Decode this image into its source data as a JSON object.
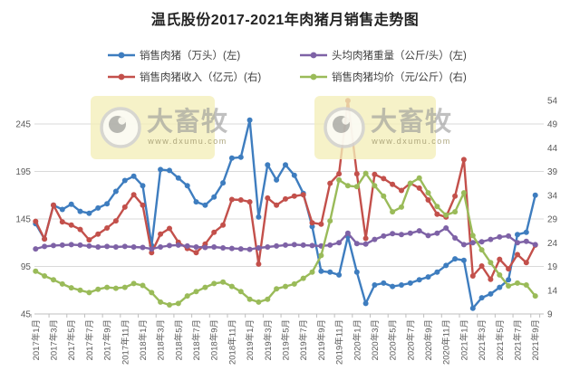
{
  "title": "温氏股份2017-2021年肉猪月销售走势图",
  "legend": {
    "items": [
      {
        "label": "销售肉猪（万头）(左)",
        "color": "#3E7DBF"
      },
      {
        "label": "销售肉猪收入（亿元）(右)",
        "color": "#C3504B"
      },
      {
        "label": "头均肉猪重量（公斤/头）(左)",
        "color": "#7E62A6"
      },
      {
        "label": "销售肉猪均价（元/公斤）(右)",
        "color": "#9ABB59"
      }
    ]
  },
  "watermark": {
    "brand": "大畜牧",
    "url": "www.dxumu.com"
  },
  "axes": {
    "left_ticks": [
      45,
      95,
      145,
      195,
      245
    ],
    "right_ticks": [
      9,
      14,
      19,
      24,
      29,
      34,
      39,
      44,
      49,
      54
    ]
  },
  "chart_data": {
    "type": "line",
    "title": "温氏股份2017-2021年肉猪月销售走势图",
    "grid": true,
    "legend_position": "top",
    "left_axis_range": [
      45,
      245
    ],
    "right_axis_range": [
      9,
      54
    ],
    "categories": [
      "2017年1月",
      "2017年2月",
      "2017年3月",
      "2017年4月",
      "2017年5月",
      "2017年6月",
      "2017年7月",
      "2017年8月",
      "2017年9月",
      "2017年10月",
      "2017年11月",
      "2017年12月",
      "2018年1月",
      "2018年2月",
      "2018年3月",
      "2018年4月",
      "2018年5月",
      "2018年6月",
      "2018年7月",
      "2018年8月",
      "2018年9月",
      "2018年10月",
      "2018年11月",
      "2018年12月",
      "2019年1月",
      "2019年2月",
      "2019年3月",
      "2019年4月",
      "2019年5月",
      "2019年6月",
      "2019年7月",
      "2019年8月",
      "2019年9月",
      "2019年10月",
      "2019年11月",
      "2019年12月",
      "2020年1月",
      "2020年2月",
      "2020年3月",
      "2020年4月",
      "2020年5月",
      "2020年6月",
      "2020年7月",
      "2020年8月",
      "2020年9月",
      "2020年10月",
      "2020年11月",
      "2020年12月",
      "2021年1月",
      "2021年2月",
      "2021年3月",
      "2021年4月",
      "2021年5月",
      "2021年6月",
      "2021年7月",
      "2021年8月",
      "2021年9月"
    ],
    "x_label_every": 2,
    "series": [
      {
        "name": "销售肉猪（万头）(左)",
        "axis": "left",
        "color": "#3E7DBF",
        "values": [
          140,
          124,
          159.5,
          155,
          160.5,
          153,
          151,
          156.5,
          161,
          174,
          185.5,
          190,
          180,
          117,
          197,
          196,
          188,
          180,
          163,
          159.5,
          168,
          183,
          209,
          210,
          249,
          147,
          202,
          186,
          202,
          191,
          172,
          137,
          90,
          89,
          86,
          126.5,
          89,
          56,
          75.5,
          77.5,
          74,
          75.5,
          77.5,
          81,
          84,
          89,
          96,
          103,
          101.5,
          51,
          62,
          66,
          73,
          81,
          128.5,
          131,
          170
        ]
      },
      {
        "name": "销售肉猪收入（亿元）(右)",
        "axis": "right",
        "color": "#C3504B",
        "values": [
          28.5,
          24.8,
          31.9,
          28.4,
          27.7,
          26.8,
          24.6,
          25.8,
          27.1,
          28.6,
          31.5,
          34.1,
          31.9,
          21.9,
          25.8,
          27,
          24.1,
          22.8,
          21.9,
          23.7,
          26.2,
          27.7,
          33.1,
          33,
          32.6,
          19.5,
          33.4,
          31.9,
          33.2,
          33.8,
          34.1,
          28.2,
          27.9,
          36.5,
          38.5,
          53.9,
          38.5,
          24.9,
          38.4,
          37.5,
          36.3,
          35,
          36.5,
          35.5,
          33,
          30,
          29.4,
          33.8,
          41.5,
          17,
          19.1,
          16.3,
          20.5,
          18.5,
          21.5,
          19.8,
          23.5
        ]
      },
      {
        "name": "头均肉猪重量（公斤/头）(左)",
        "axis": "left",
        "color": "#7E62A6",
        "values": [
          113.5,
          116,
          117,
          117.5,
          118,
          117.5,
          116.5,
          115.5,
          116,
          115.5,
          116,
          115.5,
          115,
          113.5,
          115.5,
          117,
          117.5,
          116.5,
          115.5,
          115,
          115.5,
          114.5,
          114,
          113.5,
          113,
          114.5,
          115.5,
          116.5,
          117.5,
          118,
          117.5,
          117,
          116.5,
          117.5,
          120,
          130,
          119,
          118.5,
          123.5,
          127,
          129.5,
          128.5,
          130,
          132.5,
          127.5,
          130,
          135.5,
          125,
          118,
          120,
          121,
          123.5,
          126,
          127,
          120,
          121.5,
          118
        ]
      },
      {
        "name": "销售肉猪均价（元/公斤）(右)",
        "axis": "right",
        "color": "#9ABB59",
        "values": [
          18,
          17,
          16.2,
          15.3,
          14.5,
          14,
          13.5,
          14.2,
          14.6,
          14.4,
          14.6,
          15.4,
          15,
          13.5,
          11.5,
          10.9,
          11.2,
          12.8,
          13.7,
          14.6,
          15.4,
          15.7,
          14.8,
          13.7,
          12.1,
          11.5,
          12.1,
          14.3,
          14.8,
          15.3,
          16.5,
          17.8,
          21.3,
          28.6,
          37.2,
          36,
          35.8,
          38.6,
          36,
          33.8,
          30.5,
          31.5,
          36.5,
          37.6,
          34.5,
          31.6,
          29.8,
          30.5,
          34.5,
          25.5,
          22.5,
          19.8,
          17.2,
          14.9,
          15.5,
          15.1,
          12.8
        ]
      }
    ]
  }
}
